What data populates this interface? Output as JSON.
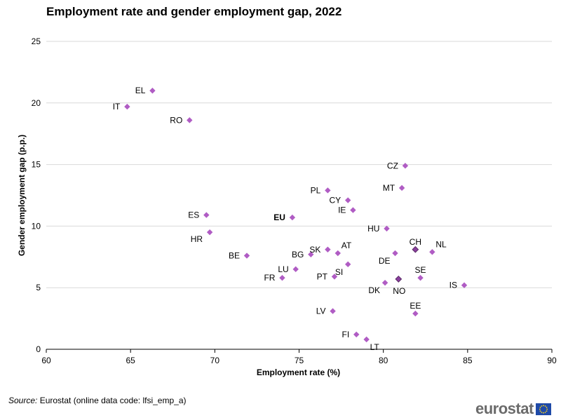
{
  "title": "Employment rate and gender employment gap, 2022",
  "source": {
    "label": "Source:",
    "text": "Eurostat (online data code: lfsi_emp_a)"
  },
  "logo": {
    "text": "eurostat",
    "name": "eurostat-logo"
  },
  "colors": {
    "point": "#b05cc4",
    "point_highlight": "#8a3f9e",
    "point_outline": "#5a2a66",
    "grid": "#d9d9d9",
    "axis": "#000000",
    "flag_blue": "#1f4aa8",
    "flag_star": "#ffd617"
  },
  "chart_data": {
    "type": "scatter",
    "title": "Employment rate and gender employment gap, 2022",
    "xlabel": "Employment rate (%)",
    "ylabel": "Gender employment gap (p.p.)",
    "xlim": [
      60,
      90
    ],
    "ylim": [
      0,
      25
    ],
    "xticks": [
      60,
      65,
      70,
      75,
      80,
      85,
      90
    ],
    "yticks": [
      0,
      5,
      10,
      15,
      20,
      25
    ],
    "grid": "horizontal",
    "points": [
      {
        "label": "EL",
        "x": 66.3,
        "y": 21.0,
        "labelpos": "left"
      },
      {
        "label": "IT",
        "x": 64.8,
        "y": 19.7,
        "labelpos": "left"
      },
      {
        "label": "RO",
        "x": 68.5,
        "y": 18.6,
        "labelpos": "left"
      },
      {
        "label": "CZ",
        "x": 81.3,
        "y": 14.9,
        "labelpos": "left"
      },
      {
        "label": "MT",
        "x": 81.1,
        "y": 13.1,
        "labelpos": "left"
      },
      {
        "label": "PL",
        "x": 76.7,
        "y": 12.9,
        "labelpos": "left"
      },
      {
        "label": "CY",
        "x": 77.9,
        "y": 12.1,
        "labelpos": "left"
      },
      {
        "label": "IE",
        "x": 78.2,
        "y": 11.3,
        "labelpos": "left"
      },
      {
        "label": "ES",
        "x": 69.5,
        "y": 10.9,
        "labelpos": "left"
      },
      {
        "label": "EU",
        "x": 74.6,
        "y": 10.7,
        "labelpos": "left",
        "bold": true
      },
      {
        "label": "HU",
        "x": 80.2,
        "y": 9.8,
        "labelpos": "left"
      },
      {
        "label": "HR",
        "x": 69.7,
        "y": 9.5,
        "labelpos": "leftbelow"
      },
      {
        "label": "CH",
        "x": 81.9,
        "y": 8.1,
        "labelpos": "above",
        "highlight": true
      },
      {
        "label": "NL",
        "x": 82.9,
        "y": 7.9,
        "labelpos": "aboveright"
      },
      {
        "label": "AT",
        "x": 77.3,
        "y": 7.8,
        "labelpos": "aboveright"
      },
      {
        "label": "DE",
        "x": 80.7,
        "y": 7.8,
        "labelpos": "belowleft"
      },
      {
        "label": "SK",
        "x": 76.7,
        "y": 8.1,
        "labelpos": "left"
      },
      {
        "label": "BG",
        "x": 75.7,
        "y": 7.7,
        "labelpos": "left"
      },
      {
        "label": "BE",
        "x": 71.9,
        "y": 7.6,
        "labelpos": "left"
      },
      {
        "label": "SI",
        "x": 77.9,
        "y": 6.9,
        "labelpos": "belowleft"
      },
      {
        "label": "LU",
        "x": 74.8,
        "y": 6.5,
        "labelpos": "left"
      },
      {
        "label": "PT",
        "x": 77.1,
        "y": 5.9,
        "labelpos": "left"
      },
      {
        "label": "SE",
        "x": 82.2,
        "y": 5.8,
        "labelpos": "above"
      },
      {
        "label": "FR",
        "x": 74.0,
        "y": 5.8,
        "labelpos": "left"
      },
      {
        "label": "NO",
        "x": 80.9,
        "y": 5.7,
        "labelpos": "below",
        "highlight": true
      },
      {
        "label": "DK",
        "x": 80.1,
        "y": 5.4,
        "labelpos": "belowleft"
      },
      {
        "label": "IS",
        "x": 84.8,
        "y": 5.2,
        "labelpos": "left"
      },
      {
        "label": "LV",
        "x": 77.0,
        "y": 3.1,
        "labelpos": "left"
      },
      {
        "label": "EE",
        "x": 81.9,
        "y": 2.9,
        "labelpos": "above"
      },
      {
        "label": "FI",
        "x": 78.4,
        "y": 1.2,
        "labelpos": "left"
      },
      {
        "label": "LT",
        "x": 79.0,
        "y": 0.8,
        "labelpos": "belowright"
      }
    ]
  }
}
